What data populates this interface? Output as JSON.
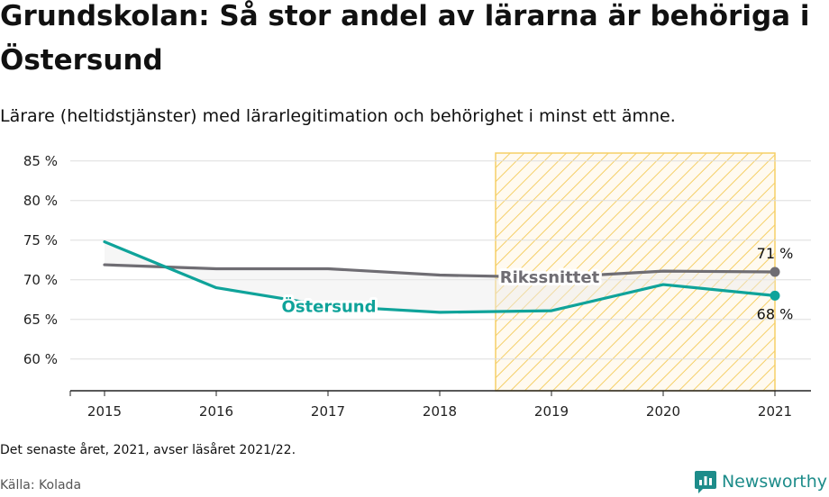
{
  "header": {
    "title": "Grundskolan: Så stor andel av lärarna är behöriga i Östersund",
    "subtitle": "Lärare (heltidstjänster) med lärarlegitimation och behörighet i minst ett ämne."
  },
  "footer": {
    "note": "Det senaste året, 2021, avser läsåret 2021/22.",
    "source": "Källa: Kolada",
    "brand": "Newsworthy"
  },
  "colors": {
    "ostersund": "#0fa39a",
    "riks": "#6f6d73",
    "highlight_stroke": "#f5cf67",
    "grid": "#dddddd",
    "brand": "#1d8c8a"
  },
  "chart_data": {
    "type": "line",
    "x": [
      "2015",
      "2016",
      "2017",
      "2018",
      "2019",
      "2020",
      "2021"
    ],
    "y_ticks": [
      "60 %",
      "65 %",
      "70 %",
      "75 %",
      "80 %",
      "85 %"
    ],
    "ylim": [
      56,
      86
    ],
    "highlight_range": [
      "2018.5",
      "2021"
    ],
    "series": [
      {
        "name": "Rikssnittet",
        "values": [
          71.9,
          71.4,
          71.4,
          70.6,
          70.3,
          71.1,
          71.0
        ],
        "end_label": "71 %"
      },
      {
        "name": "Östersund",
        "values": [
          74.8,
          69.0,
          66.7,
          65.9,
          66.1,
          69.4,
          68.0
        ],
        "end_label": "68 %"
      }
    ]
  }
}
